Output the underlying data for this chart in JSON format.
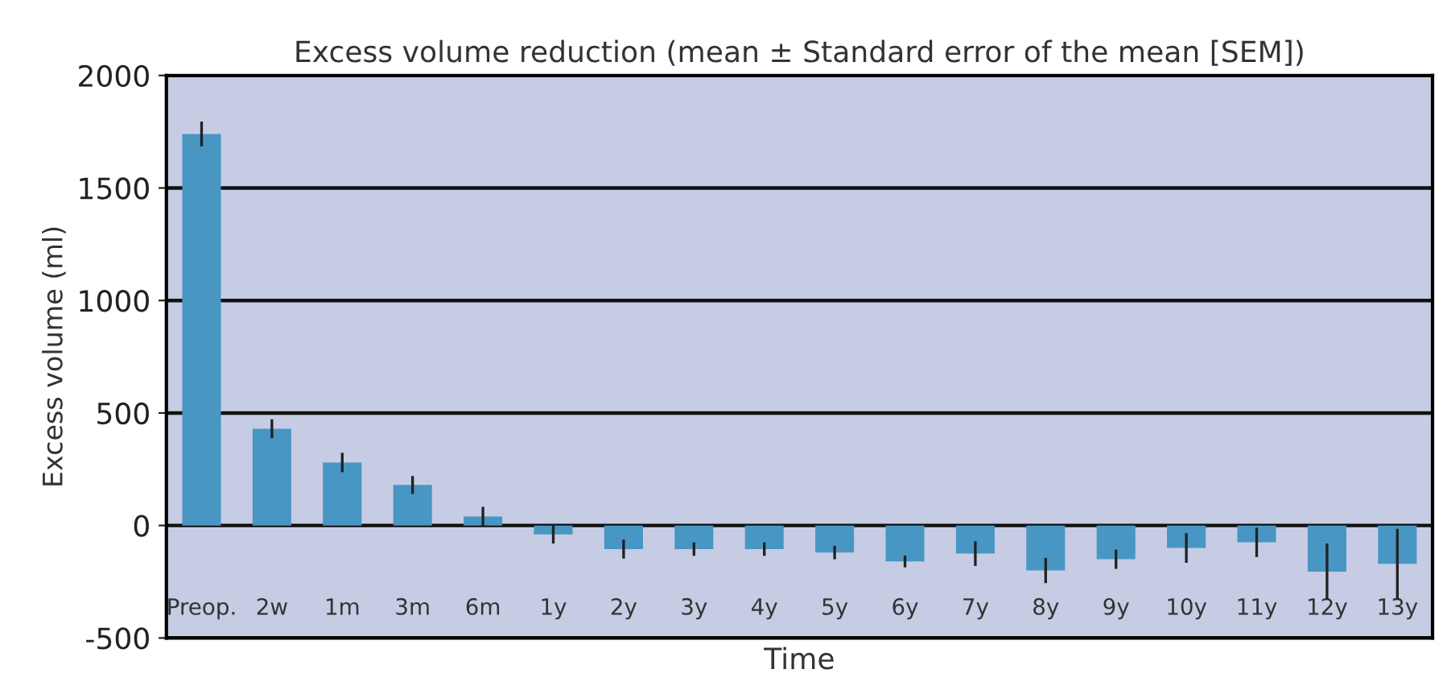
{
  "chart_data": {
    "type": "bar",
    "title": "Excess volume reduction (mean ± Standard error of the mean [SEM])",
    "xlabel": "Time",
    "ylabel": "Excess volume (ml)",
    "categories": [
      "Preop.",
      "2w",
      "1m",
      "3m",
      "6m",
      "1y",
      "2y",
      "3y",
      "4y",
      "5y",
      "6y",
      "7y",
      "8y",
      "9y",
      "10y",
      "11y",
      "12y",
      "13y"
    ],
    "values": [
      1740,
      430,
      280,
      180,
      40,
      -40,
      -105,
      -105,
      -105,
      -120,
      -160,
      -125,
      -200,
      -150,
      -100,
      -75,
      -205,
      -170
    ],
    "errors": [
      55,
      42,
      43,
      40,
      43,
      40,
      42,
      30,
      30,
      30,
      26,
      55,
      56,
      43,
      66,
      65,
      125,
      155
    ],
    "color": "#4896c4",
    "ylim": [
      -500,
      2000
    ],
    "yticks": [
      -500,
      0,
      500,
      1000,
      1500,
      2000
    ],
    "grid": "y",
    "legend": false
  }
}
